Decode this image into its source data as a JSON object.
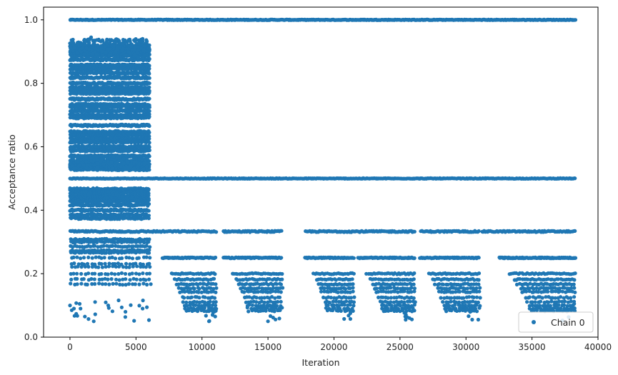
{
  "chart_data": {
    "type": "scatter",
    "xlabel": "Iteration",
    "ylabel": "Acceptance ratio",
    "xlim": [
      -2000,
      40000
    ],
    "ylim": [
      0.0,
      1.04
    ],
    "xticks": [
      "0",
      "5000",
      "10000",
      "15000",
      "20000",
      "25000",
      "30000",
      "35000",
      "40000"
    ],
    "yticks": [
      "0.0",
      "0.2",
      "0.4",
      "0.6",
      "0.8",
      "1.0"
    ],
    "grid": false,
    "legend_position": "lower-right",
    "series": [
      {
        "name": "Chain 0",
        "color": "#1f77b4",
        "marker": "circle",
        "band_summary": [
          {
            "iterations": [
              0,
              38300
            ],
            "acceptance_ratio": 1.0,
            "density": "continuous"
          },
          {
            "iterations": [
              0,
              6000
            ],
            "acceptance_ratio_range": [
              0.53,
              0.94
            ],
            "density": "dense"
          },
          {
            "iterations": [
              0,
              6000
            ],
            "acceptance_ratio_range": [
              0.37,
              0.47
            ],
            "density": "dense"
          },
          {
            "iterations": [
              0,
              38300
            ],
            "acceptance_ratio": 0.5,
            "density": "continuous"
          },
          {
            "iterations": [
              0,
              38300
            ],
            "acceptance_ratio": 0.333,
            "density": "nearly continuous"
          },
          {
            "iterations": [
              0,
              6000
            ],
            "acceptance_ratio_range": [
              0.2,
              0.32
            ],
            "density": "moderate"
          },
          {
            "iterations": [
              7000,
              38300
            ],
            "acceptance_ratio": 0.25,
            "density": "clusters"
          },
          {
            "iterations": [
              7500,
              38300
            ],
            "acceptance_ratio_range": [
              0.06,
              0.2
            ],
            "density": "sparse clusters"
          },
          {
            "iterations": [
              0,
              6000
            ],
            "acceptance_ratio_range": [
              0.05,
              0.2
            ],
            "density": "sparse"
          }
        ],
        "sample_points": [
          {
            "x": 0,
            "y": 0.1
          },
          {
            "x": 300,
            "y": 0.09
          },
          {
            "x": 800,
            "y": 0.09
          },
          {
            "x": 1800,
            "y": 0.05
          },
          {
            "x": 2900,
            "y": 0.1
          },
          {
            "x": 4200,
            "y": 0.08
          },
          {
            "x": 5500,
            "y": 0.09
          },
          {
            "x": 1600,
            "y": 0.945
          },
          {
            "x": 5500,
            "y": 0.94
          },
          {
            "x": 10800,
            "y": 0.07
          },
          {
            "x": 11000,
            "y": 0.065
          },
          {
            "x": 15000,
            "y": 0.05
          },
          {
            "x": 25400,
            "y": 0.065
          },
          {
            "x": 30500,
            "y": 0.09
          },
          {
            "x": 38200,
            "y": 0.105
          }
        ]
      }
    ]
  }
}
